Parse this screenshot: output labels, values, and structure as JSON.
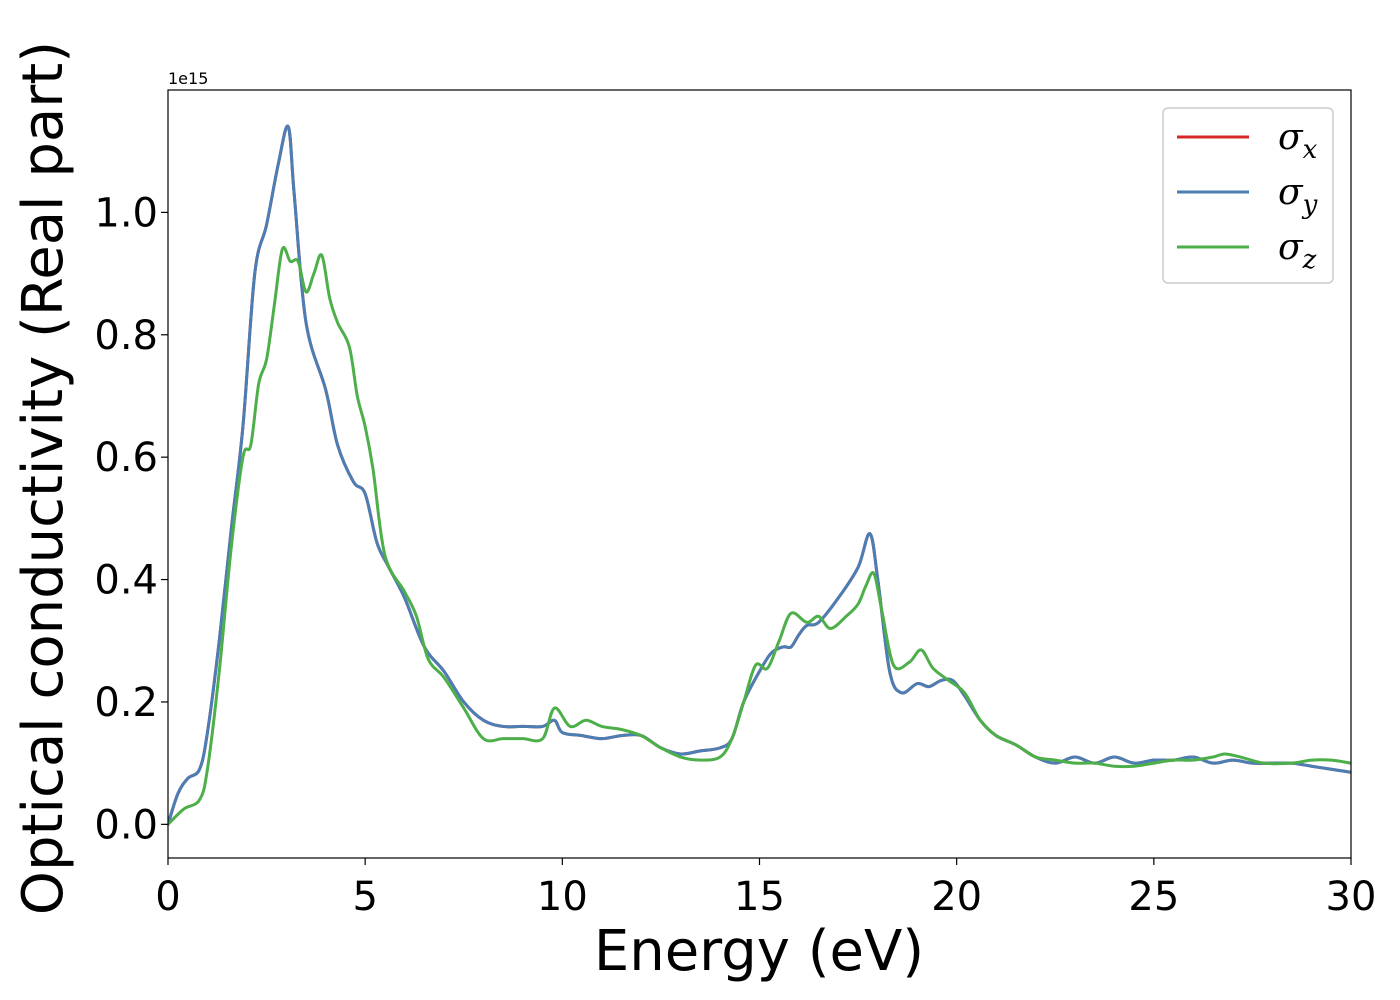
{
  "chart_data": {
    "type": "line",
    "title": "",
    "xlabel": "Energy (eV)",
    "ylabel": "Optical conductivity (Real part)",
    "y_offset_label": "1e15",
    "xlim": [
      0,
      30
    ],
    "ylim": [
      -0.055,
      1.2
    ],
    "xticks": [
      0,
      5,
      10,
      15,
      20,
      25,
      30
    ],
    "xtick_labels": [
      "0",
      "5",
      "10",
      "15",
      "20",
      "25",
      "30"
    ],
    "yticks": [
      0.0,
      0.2,
      0.4,
      0.6,
      0.8,
      1.0
    ],
    "ytick_labels": [
      "0.0",
      "0.2",
      "0.4",
      "0.6",
      "0.8",
      "1.0"
    ],
    "grid": false,
    "legend_position": "top-right",
    "series": [
      {
        "name": "σx",
        "legend_symbol": "σ",
        "legend_sub": "x",
        "color": "#d62728",
        "x": [
          0,
          0.25,
          0.5,
          0.8,
          1.0,
          1.3,
          1.6,
          1.9,
          2.2,
          2.5,
          2.8,
          3.05,
          3.2,
          3.5,
          4.0,
          4.3,
          4.7,
          5.0,
          5.3,
          5.6,
          6.0,
          6.5,
          7.0,
          7.5,
          8.0,
          8.5,
          9.0,
          9.5,
          9.8,
          10.0,
          10.5,
          11.0,
          11.5,
          12.0,
          12.5,
          13.0,
          13.5,
          14.0,
          14.3,
          14.6,
          15.0,
          15.3,
          15.6,
          15.8,
          16.0,
          16.2,
          16.5,
          17.0,
          17.5,
          17.8,
          18.0,
          18.3,
          18.6,
          19.0,
          19.3,
          19.6,
          19.9,
          20.2,
          20.6,
          21.0,
          21.5,
          22.0,
          22.5,
          23.0,
          23.5,
          24.0,
          24.5,
          25.0,
          25.5,
          26.0,
          26.5,
          27.0,
          27.5,
          28.0,
          28.5,
          29.0,
          29.5,
          30.0
        ],
        "y": [
          0.0,
          0.05,
          0.075,
          0.09,
          0.15,
          0.3,
          0.48,
          0.65,
          0.9,
          0.98,
          1.08,
          1.14,
          1.03,
          0.82,
          0.71,
          0.62,
          0.56,
          0.54,
          0.46,
          0.42,
          0.37,
          0.29,
          0.25,
          0.2,
          0.17,
          0.16,
          0.16,
          0.16,
          0.17,
          0.15,
          0.145,
          0.14,
          0.145,
          0.145,
          0.125,
          0.115,
          0.12,
          0.125,
          0.14,
          0.2,
          0.25,
          0.28,
          0.29,
          0.29,
          0.31,
          0.325,
          0.33,
          0.37,
          0.42,
          0.475,
          0.4,
          0.25,
          0.215,
          0.23,
          0.225,
          0.235,
          0.235,
          0.21,
          0.17,
          0.145,
          0.13,
          0.11,
          0.1,
          0.11,
          0.1,
          0.11,
          0.1,
          0.105,
          0.105,
          0.11,
          0.1,
          0.105,
          0.1,
          0.1,
          0.1,
          0.095,
          0.09,
          0.085
        ]
      },
      {
        "name": "σy",
        "legend_symbol": "σ",
        "legend_sub": "y",
        "color": "#4a7eb5",
        "x": [
          0,
          0.25,
          0.5,
          0.8,
          1.0,
          1.3,
          1.6,
          1.9,
          2.2,
          2.5,
          2.8,
          3.05,
          3.2,
          3.5,
          4.0,
          4.3,
          4.7,
          5.0,
          5.3,
          5.6,
          6.0,
          6.5,
          7.0,
          7.5,
          8.0,
          8.5,
          9.0,
          9.5,
          9.8,
          10.0,
          10.5,
          11.0,
          11.5,
          12.0,
          12.5,
          13.0,
          13.5,
          14.0,
          14.3,
          14.6,
          15.0,
          15.3,
          15.6,
          15.8,
          16.0,
          16.2,
          16.5,
          17.0,
          17.5,
          17.8,
          18.0,
          18.3,
          18.6,
          19.0,
          19.3,
          19.6,
          19.9,
          20.2,
          20.6,
          21.0,
          21.5,
          22.0,
          22.5,
          23.0,
          23.5,
          24.0,
          24.5,
          25.0,
          25.5,
          26.0,
          26.5,
          27.0,
          27.5,
          28.0,
          28.5,
          29.0,
          29.5,
          30.0
        ],
        "y": [
          0.0,
          0.05,
          0.075,
          0.09,
          0.15,
          0.3,
          0.48,
          0.65,
          0.9,
          0.98,
          1.08,
          1.14,
          1.03,
          0.82,
          0.71,
          0.62,
          0.56,
          0.54,
          0.46,
          0.42,
          0.37,
          0.29,
          0.25,
          0.2,
          0.17,
          0.16,
          0.16,
          0.16,
          0.17,
          0.15,
          0.145,
          0.14,
          0.145,
          0.145,
          0.125,
          0.115,
          0.12,
          0.125,
          0.14,
          0.2,
          0.25,
          0.28,
          0.29,
          0.29,
          0.31,
          0.325,
          0.33,
          0.37,
          0.42,
          0.475,
          0.4,
          0.25,
          0.215,
          0.23,
          0.225,
          0.235,
          0.235,
          0.21,
          0.17,
          0.145,
          0.13,
          0.11,
          0.1,
          0.11,
          0.1,
          0.11,
          0.1,
          0.105,
          0.105,
          0.11,
          0.1,
          0.105,
          0.1,
          0.1,
          0.1,
          0.095,
          0.09,
          0.085
        ]
      },
      {
        "name": "σz",
        "legend_symbol": "σ",
        "legend_sub": "z",
        "color": "#4daf4a",
        "x": [
          0,
          0.4,
          0.8,
          1.0,
          1.3,
          1.6,
          1.9,
          2.1,
          2.3,
          2.5,
          2.7,
          2.9,
          3.1,
          3.3,
          3.5,
          3.7,
          3.9,
          4.1,
          4.3,
          4.6,
          4.8,
          5.0,
          5.2,
          5.5,
          6.0,
          6.3,
          6.6,
          7.0,
          7.5,
          8.0,
          8.5,
          9.0,
          9.5,
          9.8,
          10.2,
          10.6,
          11.0,
          11.5,
          12.0,
          12.5,
          13.0,
          13.5,
          14.0,
          14.3,
          14.6,
          14.9,
          15.2,
          15.5,
          15.8,
          16.2,
          16.5,
          16.8,
          17.2,
          17.5,
          17.7,
          17.9,
          18.1,
          18.4,
          18.8,
          19.1,
          19.4,
          19.8,
          20.2,
          20.6,
          21.0,
          21.5,
          22.0,
          22.5,
          23.0,
          23.5,
          24.0,
          24.5,
          25.0,
          25.5,
          26.0,
          26.5,
          26.8,
          27.2,
          27.8,
          28.5,
          29.0,
          29.5,
          30.0
        ],
        "y": [
          0.0,
          0.025,
          0.04,
          0.09,
          0.25,
          0.45,
          0.6,
          0.62,
          0.72,
          0.76,
          0.85,
          0.94,
          0.92,
          0.92,
          0.87,
          0.9,
          0.93,
          0.86,
          0.82,
          0.78,
          0.7,
          0.65,
          0.58,
          0.44,
          0.38,
          0.34,
          0.27,
          0.24,
          0.19,
          0.14,
          0.14,
          0.14,
          0.14,
          0.19,
          0.16,
          0.17,
          0.16,
          0.155,
          0.145,
          0.125,
          0.11,
          0.105,
          0.11,
          0.14,
          0.2,
          0.26,
          0.255,
          0.3,
          0.345,
          0.33,
          0.34,
          0.32,
          0.34,
          0.36,
          0.39,
          0.41,
          0.35,
          0.26,
          0.265,
          0.285,
          0.255,
          0.235,
          0.215,
          0.17,
          0.145,
          0.13,
          0.11,
          0.105,
          0.1,
          0.1,
          0.095,
          0.095,
          0.1,
          0.105,
          0.105,
          0.11,
          0.115,
          0.11,
          0.1,
          0.1,
          0.105,
          0.105,
          0.1
        ]
      }
    ]
  }
}
